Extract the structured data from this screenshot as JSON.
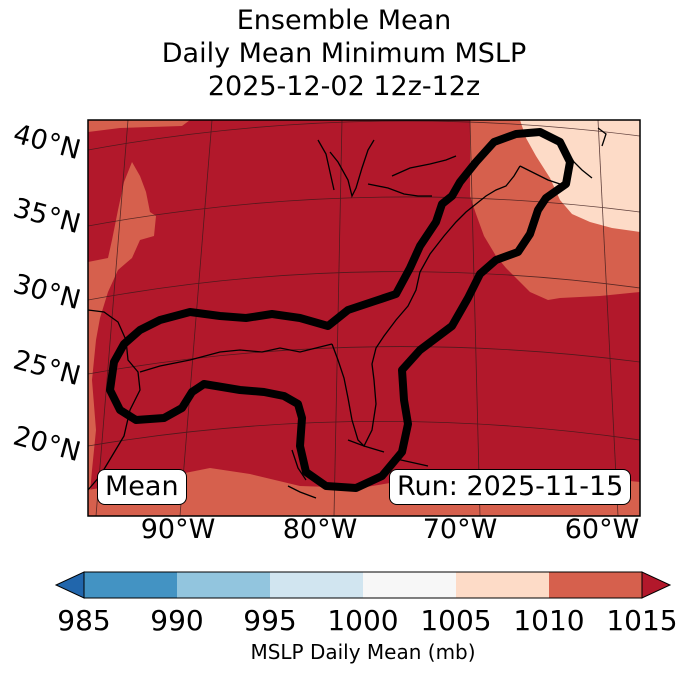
{
  "title": {
    "line1": "Ensemble Mean",
    "line2": "Daily Mean Minimum MSLP",
    "line3": "2025-12-02 12z-12z"
  },
  "map": {
    "lat_labels": [
      "40°N",
      "35°N",
      "30°N",
      "25°N",
      "20°N"
    ],
    "lon_labels": [
      "90°W",
      "80°W",
      "70°W",
      "60°W"
    ],
    "left_box": "Mean",
    "run_box": "Run: 2025-11-15",
    "colors": {
      "c1010_1015": "#b2182b",
      "c1005_1010": "#d6604d",
      "c1000_1005": "#fddbc7",
      "land_outline": "#000000",
      "contour": "#000000"
    }
  },
  "colorbar": {
    "label": "MSLP Daily Mean (mb)",
    "ticks": [
      "985",
      "990",
      "995",
      "1000",
      "1005",
      "1010",
      "1015"
    ],
    "levels": [
      985,
      990,
      995,
      1000,
      1005,
      1010,
      1015
    ],
    "colors": [
      "#4393c3",
      "#92c5de",
      "#d1e5f0",
      "#f7f7f7",
      "#fddbc7",
      "#d6604d"
    ],
    "under_color": "#2166ac",
    "over_color": "#b2182b"
  }
}
